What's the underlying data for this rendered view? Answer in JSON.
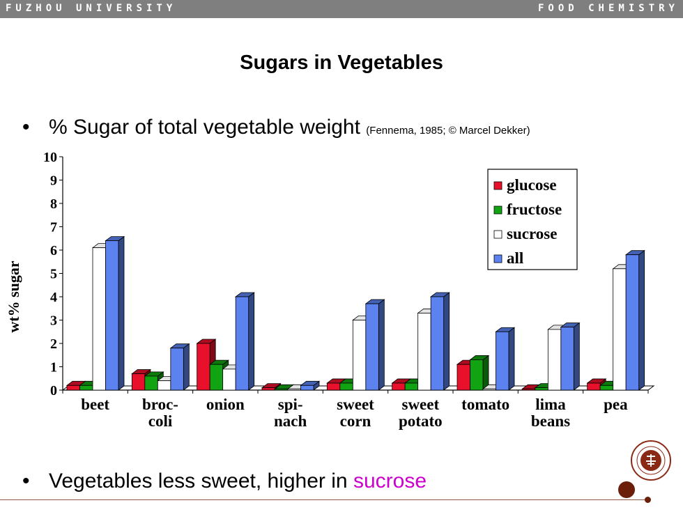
{
  "header": {
    "left": "FUZHOU UNIVERSITY",
    "right": "FOOD CHEMISTRY"
  },
  "title": "Sugars in Vegetables",
  "bullets": {
    "first": {
      "text": "% Sugar of total vegetable weight",
      "citation": "(Fennema, 1985; © Marcel Dekker)"
    },
    "second": {
      "text": "Vegetables less sweet, higher in",
      "highlight": "sucrose"
    }
  },
  "colors": {
    "glucose": "#e8102a",
    "fructose": "#12a312",
    "sucrose": "#ffffff",
    "all": "#5b82ee",
    "accent": "#cc00cc",
    "seal": "#8b2a14"
  },
  "chart_data": {
    "type": "bar",
    "ylabel": "wt% sugar",
    "ylim": [
      0,
      10
    ],
    "yticks": [
      0,
      1,
      2,
      3,
      4,
      5,
      6,
      7,
      8,
      9,
      10
    ],
    "categories": [
      [
        "beet"
      ],
      [
        "broc-",
        "coli"
      ],
      [
        "onion"
      ],
      [
        "spi-",
        "nach"
      ],
      [
        "sweet",
        "corn"
      ],
      [
        "sweet",
        "potato"
      ],
      [
        "tomato"
      ],
      [
        "lima",
        "beans"
      ],
      [
        "pea"
      ]
    ],
    "series": [
      {
        "name": "glucose",
        "values": [
          0.2,
          0.7,
          2.0,
          0.1,
          0.3,
          0.3,
          1.1,
          0.05,
          0.3
        ]
      },
      {
        "name": "fructose",
        "values": [
          0.2,
          0.6,
          1.1,
          0.05,
          0.3,
          0.3,
          1.3,
          0.1,
          0.2
        ]
      },
      {
        "name": "sucrose",
        "values": [
          6.1,
          0.4,
          0.9,
          0.05,
          3.0,
          3.3,
          0.05,
          2.6,
          5.2
        ]
      },
      {
        "name": "all",
        "values": [
          6.4,
          1.8,
          4.0,
          0.2,
          3.7,
          4.0,
          2.5,
          2.7,
          5.8
        ]
      }
    ],
    "legend": {
      "position": "top-right"
    },
    "grid": false
  }
}
